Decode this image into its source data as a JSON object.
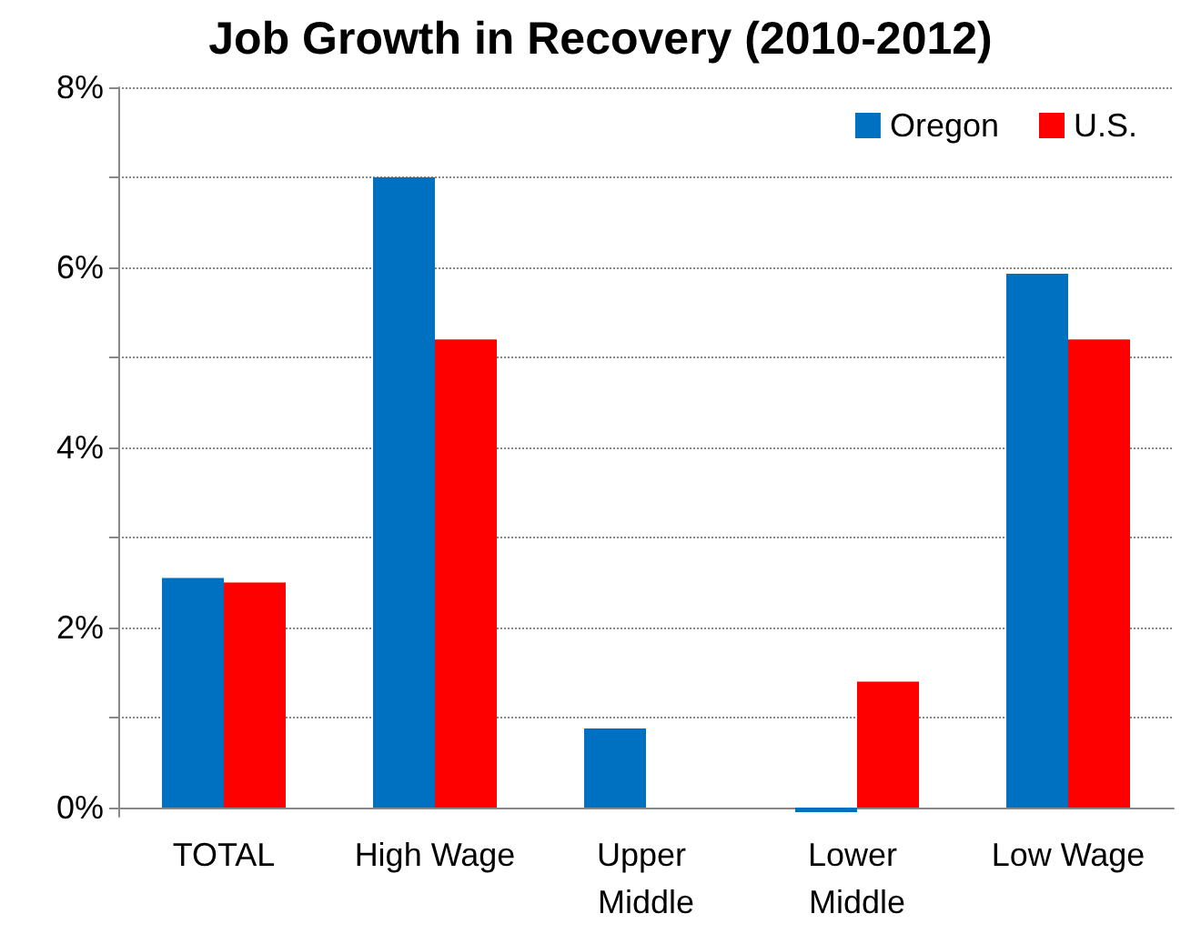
{
  "chart_data": {
    "type": "bar",
    "title": "Job Growth in Recovery (2010-2012)",
    "categories": [
      "TOTAL",
      "High Wage",
      "Upper Middle",
      "Lower Middle",
      "Low Wage"
    ],
    "series": [
      {
        "name": "Oregon",
        "color": "#0070c0",
        "values": [
          2.55,
          7.0,
          0.88,
          -0.05,
          5.93
        ]
      },
      {
        "name": "U.S.",
        "color": "#ff0000",
        "values": [
          2.5,
          5.2,
          0,
          1.4,
          5.2
        ]
      }
    ],
    "ylim": [
      -0.1,
      8
    ],
    "yticks": [
      {
        "value": 0,
        "label": "0%"
      },
      {
        "value": 1,
        "label": null
      },
      {
        "value": 2,
        "label": "2%"
      },
      {
        "value": 3,
        "label": null
      },
      {
        "value": 4,
        "label": "4%"
      },
      {
        "value": 5,
        "label": null
      },
      {
        "value": 6,
        "label": "6%"
      },
      {
        "value": 7,
        "label": null
      },
      {
        "value": 8,
        "label": "8%"
      }
    ],
    "grid": "y",
    "legend": "top right"
  }
}
